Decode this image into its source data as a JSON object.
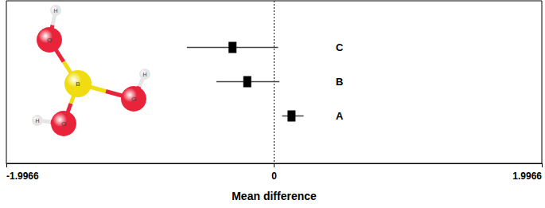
{
  "chart_data": {
    "type": "forest",
    "x_label": "Mean difference",
    "categories": [
      "A",
      "B",
      "C"
    ],
    "values": [
      0.13,
      -0.2,
      -0.31
    ],
    "lower": [
      0.06,
      -0.43,
      -0.65
    ],
    "upper": [
      0.22,
      0.04,
      0.03
    ],
    "xlim": [
      -1.9966,
      1.9966
    ],
    "xticks": [
      -1.9966,
      0,
      1.9966
    ],
    "reference_line": 0,
    "marker": "square",
    "color": "#000000",
    "grid": false
  },
  "molecule": {
    "atom_labels": [
      "H",
      "O",
      "B",
      "O",
      "H",
      "O",
      "H"
    ]
  }
}
